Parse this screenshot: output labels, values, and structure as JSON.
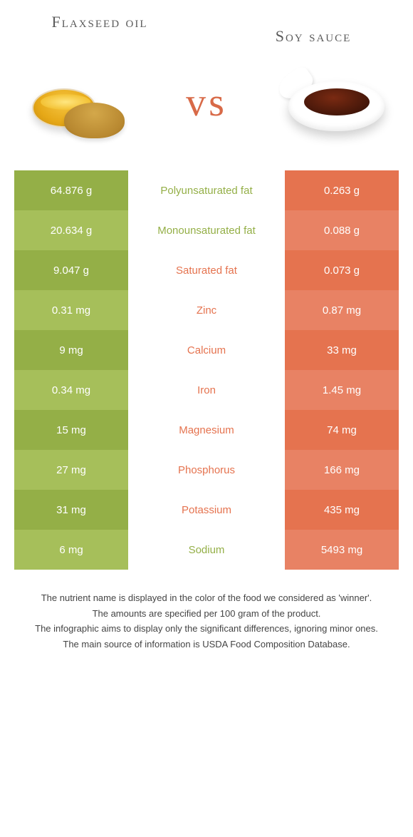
{
  "header": {
    "left_title": "Flaxseed oil",
    "right_title": "Soy sauce",
    "vs_label": "vs"
  },
  "colors": {
    "left_odd": "#94af47",
    "left_even": "#a6bf5a",
    "right_odd": "#e5734f",
    "right_even": "#e88264",
    "left_text": "#94af47",
    "right_text": "#e5734f"
  },
  "rows": [
    {
      "left": "64.876 g",
      "label": "Polyunsaturated fat",
      "winner": "left",
      "right": "0.263 g"
    },
    {
      "left": "20.634 g",
      "label": "Monounsaturated fat",
      "winner": "left",
      "right": "0.088 g"
    },
    {
      "left": "9.047 g",
      "label": "Saturated fat",
      "winner": "right",
      "right": "0.073 g"
    },
    {
      "left": "0.31 mg",
      "label": "Zinc",
      "winner": "right",
      "right": "0.87 mg"
    },
    {
      "left": "9 mg",
      "label": "Calcium",
      "winner": "right",
      "right": "33 mg"
    },
    {
      "left": "0.34 mg",
      "label": "Iron",
      "winner": "right",
      "right": "1.45 mg"
    },
    {
      "left": "15 mg",
      "label": "Magnesium",
      "winner": "right",
      "right": "74 mg"
    },
    {
      "left": "27 mg",
      "label": "Phosphorus",
      "winner": "right",
      "right": "166 mg"
    },
    {
      "left": "31 mg",
      "label": "Potassium",
      "winner": "right",
      "right": "435 mg"
    },
    {
      "left": "6 mg",
      "label": "Sodium",
      "winner": "left",
      "right": "5493 mg"
    }
  ],
  "notes": [
    "The nutrient name is displayed in the color of the food we considered as 'winner'.",
    "The amounts are specified per 100 gram of the product.",
    "The infographic aims to display only the significant differences, ignoring minor ones.",
    "The main source of information is USDA Food Composition Database."
  ]
}
